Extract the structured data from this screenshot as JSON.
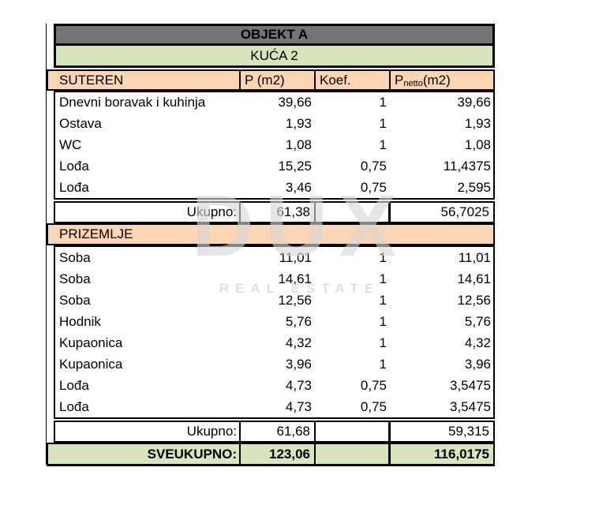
{
  "header": {
    "title": "OBJEKT A",
    "subtitle": "KUĆA 2"
  },
  "columns": {
    "p": "P (m2)",
    "koef": "Koef.",
    "pnetto_base": "P",
    "pnetto_sub": "netto",
    "pnetto_unit": " (m2)"
  },
  "suteren": {
    "label": "SUTEREN",
    "rows": [
      {
        "name": "Dnevni boravak i kuhinja",
        "p": "39,66",
        "koef": "1",
        "pnetto": "39,66"
      },
      {
        "name": "Ostava",
        "p": "1,93",
        "koef": "1",
        "pnetto": "1,93"
      },
      {
        "name": "WC",
        "p": "1,08",
        "koef": "1",
        "pnetto": "1,08"
      },
      {
        "name": "Lođa",
        "p": "15,25",
        "koef": "0,75",
        "pnetto": "11,4375"
      },
      {
        "name": "Lođa",
        "p": "3,46",
        "koef": "0,75",
        "pnetto": "2,595"
      }
    ],
    "total": {
      "label": "Ukupno:",
      "p": "61,38",
      "pnetto": "56,7025"
    }
  },
  "prizemlje": {
    "label": "PRIZEMLJE",
    "rows": [
      {
        "name": "Soba",
        "p": "11,01",
        "koef": "1",
        "pnetto": "11,01"
      },
      {
        "name": "Soba",
        "p": "14,61",
        "koef": "1",
        "pnetto": "14,61"
      },
      {
        "name": "Soba",
        "p": "12,56",
        "koef": "1",
        "pnetto": "12,56"
      },
      {
        "name": "Hodnik",
        "p": "5,76",
        "koef": "1",
        "pnetto": "5,76"
      },
      {
        "name": "Kupaonica",
        "p": "4,32",
        "koef": "1",
        "pnetto": "4,32"
      },
      {
        "name": "Kupaonica",
        "p": "3,96",
        "koef": "1",
        "pnetto": "3,96"
      },
      {
        "name": "Lođa",
        "p": "4,73",
        "koef": "0,75",
        "pnetto": "3,5475"
      },
      {
        "name": "Lođa",
        "p": "4,73",
        "koef": "0,75",
        "pnetto": "3,5475"
      }
    ],
    "total": {
      "label": "Ukupno:",
      "p": "61,68",
      "pnetto": "59,315"
    }
  },
  "grand_total": {
    "label": "SVEUKUPNO:",
    "p": "123,06",
    "pnetto": "116,0175"
  },
  "watermark": {
    "line1": "DUX",
    "line2": "REAL ESTATE"
  },
  "colors": {
    "title_gray": "#747474",
    "section_peach": "#FCD5B4",
    "total_green": "#D8E4BC",
    "border_black": "#000000"
  }
}
